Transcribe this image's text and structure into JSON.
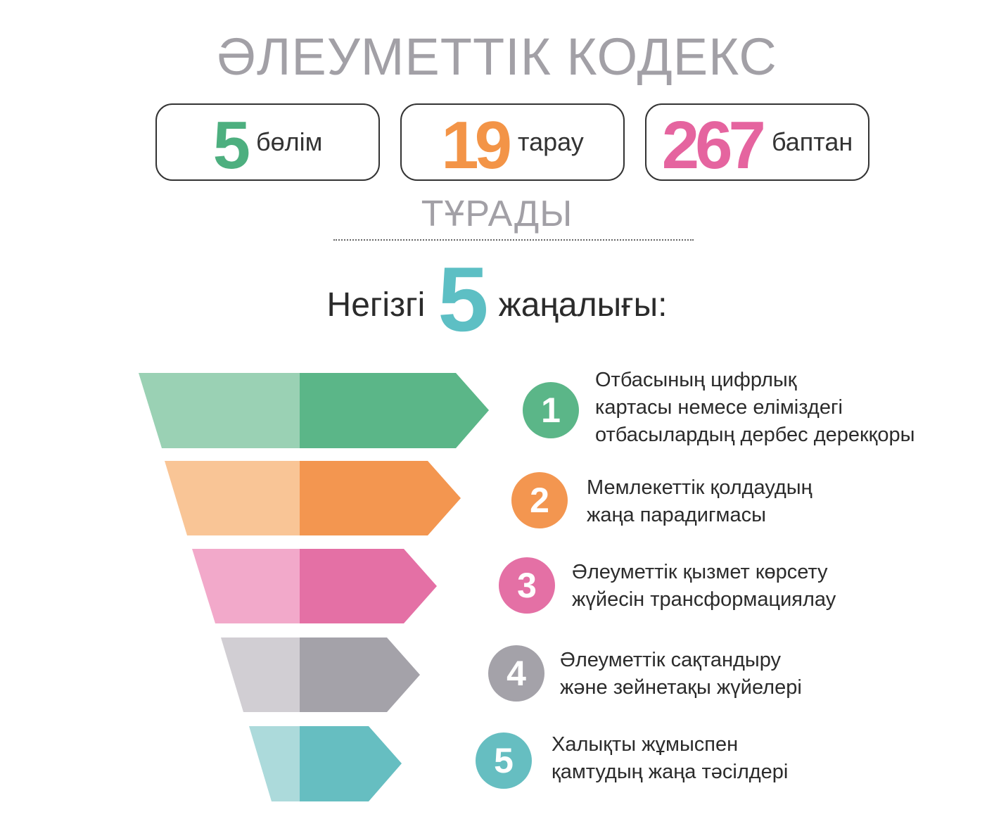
{
  "title": "ӘЛЕУМЕТТІК КОДЕКС",
  "stats": [
    {
      "number": "5",
      "word": "бөлім",
      "color": "#4daf7f"
    },
    {
      "number": "19",
      "word": "тарау",
      "color": "#f39447"
    },
    {
      "number": "267",
      "word": "баптан",
      "color": "#e5649f"
    }
  ],
  "subtitle": "ТҰРАДЫ",
  "heading": {
    "before": "Негізгі",
    "number": "5",
    "after": "жаңалығы:"
  },
  "items": [
    {
      "number": "1",
      "line1": "Отбасының цифрлық",
      "line2": "картасы немесе еліміздегі",
      "line3": "отбасылардың дербес дерекқоры",
      "color": "#5bb688",
      "light_color": "#9ad1b4"
    },
    {
      "number": "2",
      "line1": "Мемлекеттік қолдаудың",
      "line2": "жаңа парадигмасы",
      "line3": "",
      "color": "#f39650",
      "light_color": "#f9c596"
    },
    {
      "number": "3",
      "line1": "Әлеуметтік қызмет көрсету",
      "line2": "жүйесін трансформациялау",
      "line3": "",
      "color": "#e470a5",
      "light_color": "#f2a9ca"
    },
    {
      "number": "4",
      "line1": "Әлеуметтік сақтандыру",
      "line2": "және зейнетақы жүйелері",
      "line3": "",
      "color": "#a4a2a9",
      "light_color": "#d1ced3"
    },
    {
      "number": "5",
      "line1": "Халықты жұмыспен",
      "line2": "қамтудың жаңа тәсілдері",
      "line3": "",
      "color": "#66bec1",
      "light_color": "#acdadb"
    }
  ]
}
